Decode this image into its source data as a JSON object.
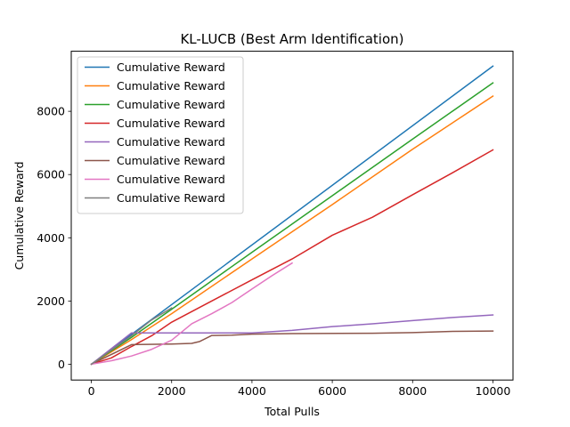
{
  "chart_data": {
    "type": "line",
    "title": "KL-LUCB (Best Arm Identification)",
    "xlabel": "Total Pulls",
    "ylabel": "Cumulative Reward",
    "xlim": [
      -500,
      10500
    ],
    "ylim": [
      -500,
      9900
    ],
    "xticks": [
      0,
      2000,
      4000,
      6000,
      8000,
      10000
    ],
    "yticks": [
      0,
      2000,
      4000,
      6000,
      8000
    ],
    "xtick_labels": [
      "0",
      "2000",
      "4000",
      "6000",
      "8000",
      "10000"
    ],
    "ytick_labels": [
      "0",
      "2000",
      "4000",
      "6000",
      "8000"
    ],
    "grid": false,
    "legend_position": "top-left",
    "series": [
      {
        "name": "Cumulative Reward",
        "color": "#1f77b4",
        "x": [
          0,
          10000
        ],
        "y": [
          0,
          9430
        ]
      },
      {
        "name": "Cumulative Reward",
        "color": "#ff7f0e",
        "x": [
          0,
          1000,
          2000,
          4000,
          6000,
          8000,
          10000
        ],
        "y": [
          0,
          780,
          1600,
          3330,
          5050,
          6800,
          8480
        ]
      },
      {
        "name": "Cumulative Reward",
        "color": "#2ca02c",
        "x": [
          0,
          1000,
          2000,
          4000,
          6000,
          8000,
          10000
        ],
        "y": [
          0,
          850,
          1740,
          3540,
          5330,
          7120,
          8900
        ]
      },
      {
        "name": "Cumulative Reward",
        "color": "#d62728",
        "x": [
          0,
          500,
          1000,
          1500,
          2000,
          3000,
          4000,
          5000,
          6000,
          7000,
          8000,
          9000,
          10000
        ],
        "y": [
          0,
          200,
          560,
          900,
          1330,
          2000,
          2670,
          3330,
          4080,
          4650,
          5360,
          6060,
          6780
        ]
      },
      {
        "name": "Cumulative Reward",
        "color": "#9467bd",
        "x": [
          0,
          1000,
          2000,
          3000,
          4000,
          5000,
          6000,
          7000,
          8000,
          9000,
          10000
        ],
        "y": [
          0,
          990,
          990,
          990,
          990,
          1070,
          1190,
          1280,
          1380,
          1480,
          1560
        ]
      },
      {
        "name": "Cumulative Reward",
        "color": "#8c564b",
        "x": [
          0,
          1000,
          2000,
          2500,
          2700,
          3000,
          3500,
          4000,
          5000,
          7000,
          8000,
          9000,
          10000
        ],
        "y": [
          0,
          620,
          640,
          660,
          720,
          910,
          920,
          950,
          970,
          980,
          1000,
          1040,
          1050
        ]
      },
      {
        "name": "Cumulative Reward",
        "color": "#e377c2",
        "x": [
          0,
          500,
          1000,
          1500,
          2000,
          2500,
          3000,
          3500,
          4000,
          4500,
          5000
        ],
        "y": [
          0,
          110,
          260,
          470,
          760,
          1280,
          1600,
          1950,
          2380,
          2800,
          3200
        ]
      },
      {
        "name": "Cumulative Reward",
        "color": "#7f7f7f",
        "x": [
          0,
          1000,
          1500,
          2000
        ],
        "y": [
          0,
          900,
          1400,
          1780
        ]
      }
    ]
  }
}
